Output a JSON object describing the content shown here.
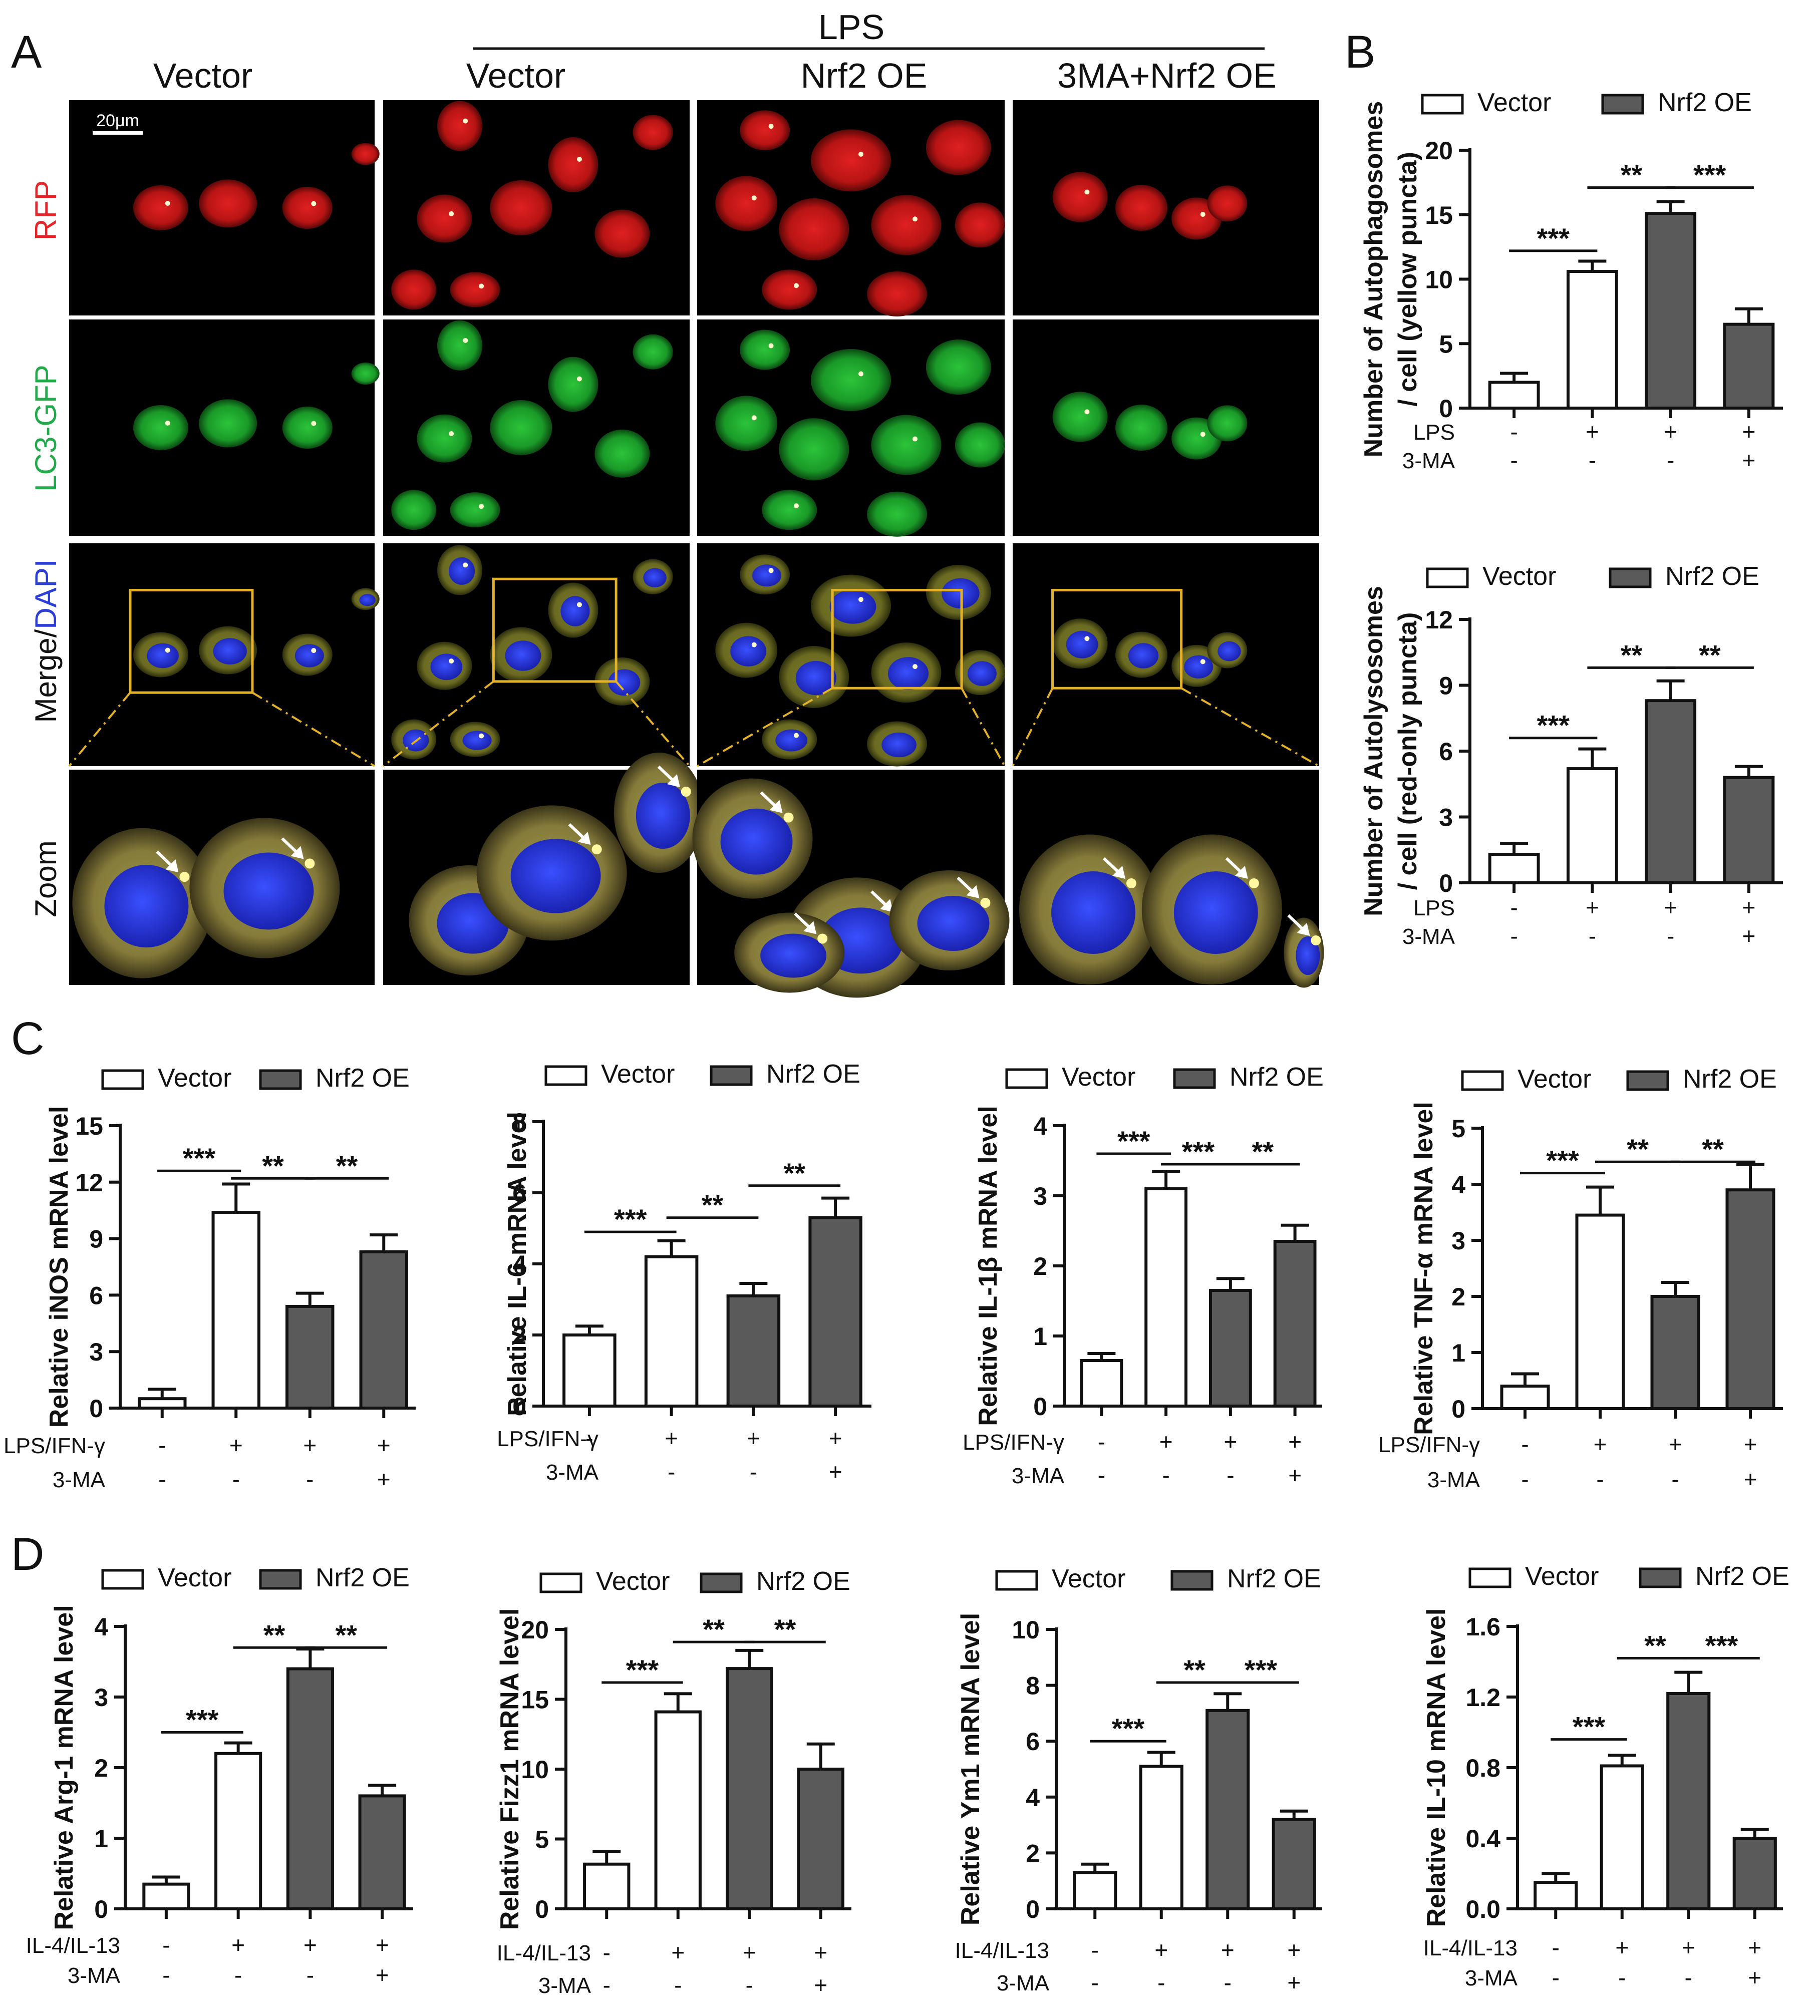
{
  "panel_a": {
    "letter": "A",
    "group_header": "LPS",
    "columns": [
      "Vector",
      "Vector",
      "Nrf2 OE",
      "3MA+Nrf2 OE"
    ],
    "rows": [
      {
        "label": "RFP",
        "color": "#e3262a"
      },
      {
        "label": "LC3-GFP",
        "color": "#22a94a"
      },
      {
        "label_parts": [
          "Merge/",
          "DAPI"
        ],
        "colors": [
          "#111111",
          "#2b3fd6"
        ]
      },
      {
        "label": "Zoom",
        "color": "#111111"
      }
    ],
    "scale_bar": "20μm"
  },
  "legend": {
    "vector": "Vector",
    "nrf2": "Nrf2 OE"
  },
  "colors": {
    "vector": "#ffffff",
    "nrf2": "#5a5a5a",
    "box": "#e3b22a"
  },
  "chart_data": [
    {
      "id": "b1",
      "panel": "B",
      "type": "bar",
      "ylabel_lines": [
        "Number of  Autophagosomes",
        "/ cell (yellow puncta)"
      ],
      "ylim": [
        0,
        20
      ],
      "yticks": [
        "0",
        "5",
        "10",
        "15",
        "20"
      ],
      "rows": [
        {
          "label": "LPS",
          "values": [
            "-",
            "+",
            "+",
            "+"
          ]
        },
        {
          "label": "3-MA",
          "values": [
            "-",
            "-",
            "-",
            "+"
          ]
        }
      ],
      "series": [
        {
          "values": [
            2.0,
            10.6,
            15.1,
            6.5
          ],
          "errors": [
            0.7,
            0.8,
            0.9,
            1.2
          ],
          "fills": [
            "vector",
            "vector",
            "nrf2",
            "nrf2"
          ]
        }
      ],
      "sig": [
        {
          "from": 0,
          "to": 1,
          "label": "***",
          "y": 12.2
        },
        {
          "from": 1,
          "to": 2,
          "label": "**",
          "y": 17.1
        },
        {
          "from": 2,
          "to": 3,
          "label": "***",
          "y": 17.1
        }
      ]
    },
    {
      "id": "b2",
      "panel": "",
      "type": "bar",
      "ylabel_lines": [
        "Number of  Autolysosomes",
        "/ cell (red-only puncta)"
      ],
      "ylim": [
        0,
        12
      ],
      "yticks": [
        "0",
        "3",
        "6",
        "9",
        "12"
      ],
      "rows": [
        {
          "label": "LPS",
          "values": [
            "-",
            "+",
            "+",
            "+"
          ]
        },
        {
          "label": "3-MA",
          "values": [
            "-",
            "-",
            "-",
            "+"
          ]
        }
      ],
      "series": [
        {
          "values": [
            1.3,
            5.2,
            8.3,
            4.8
          ],
          "errors": [
            0.5,
            0.9,
            0.9,
            0.5
          ],
          "fills": [
            "vector",
            "vector",
            "nrf2",
            "nrf2"
          ]
        }
      ],
      "sig": [
        {
          "from": 0,
          "to": 1,
          "label": "***",
          "y": 6.6
        },
        {
          "from": 1,
          "to": 2,
          "label": "**",
          "y": 9.8
        },
        {
          "from": 2,
          "to": 3,
          "label": "**",
          "y": 9.8
        }
      ]
    },
    {
      "id": "c1",
      "panel": "C",
      "type": "bar",
      "ylabel_lines": [
        "Relative iNOS mRNA level"
      ],
      "ylim": [
        0,
        15
      ],
      "yticks": [
        "0",
        "3",
        "6",
        "9",
        "12",
        "15"
      ],
      "rows": [
        {
          "label": "LPS/IFN-γ",
          "values": [
            "-",
            "+",
            "+",
            "+"
          ]
        },
        {
          "label": "3-MA",
          "values": [
            "-",
            "-",
            "-",
            "+"
          ]
        }
      ],
      "series": [
        {
          "values": [
            0.5,
            10.4,
            5.4,
            8.3
          ],
          "errors": [
            0.5,
            1.5,
            0.7,
            0.9
          ],
          "fills": [
            "vector",
            "vector",
            "nrf2",
            "nrf2"
          ]
        }
      ],
      "sig": [
        {
          "from": 0,
          "to": 1,
          "label": "***",
          "y": 12.6
        },
        {
          "from": 1,
          "to": 2,
          "label": "**",
          "y": 12.2
        },
        {
          "from": 2,
          "to": 3,
          "label": "**",
          "y": 12.2
        }
      ]
    },
    {
      "id": "c2",
      "panel": "",
      "type": "bar",
      "ylabel_lines": [
        "Relative IL-6 mRNA level"
      ],
      "ylim": [
        0,
        8
      ],
      "yticks": [
        "0",
        "2",
        "4",
        "6",
        "8"
      ],
      "rows": [
        {
          "label": "LPS/IFN-γ",
          "values": [
            "-",
            "+",
            "+",
            "+"
          ]
        },
        {
          "label": "3-MA",
          "values": [
            "-",
            "-",
            "-",
            "+"
          ]
        }
      ],
      "series": [
        {
          "values": [
            2.0,
            4.2,
            3.1,
            5.3
          ],
          "errors": [
            0.25,
            0.45,
            0.35,
            0.55
          ],
          "fills": [
            "vector",
            "vector",
            "nrf2",
            "nrf2"
          ]
        }
      ],
      "sig": [
        {
          "from": 0,
          "to": 1,
          "label": "***",
          "y": 4.9
        },
        {
          "from": 1,
          "to": 2,
          "label": "**",
          "y": 5.3
        },
        {
          "from": 2,
          "to": 3,
          "label": "**",
          "y": 6.2
        }
      ]
    },
    {
      "id": "c3",
      "panel": "",
      "type": "bar",
      "ylabel_lines": [
        "Relative IL-1β mRNA level"
      ],
      "ylim": [
        0,
        4
      ],
      "yticks": [
        "0",
        "1",
        "2",
        "3",
        "4"
      ],
      "rows": [
        {
          "label": "LPS/IFN-γ",
          "values": [
            "-",
            "+",
            "+",
            "+"
          ]
        },
        {
          "label": "3-MA",
          "values": [
            "-",
            "-",
            "-",
            "+"
          ]
        }
      ],
      "series": [
        {
          "values": [
            0.65,
            3.1,
            1.65,
            2.35
          ],
          "errors": [
            0.1,
            0.25,
            0.17,
            0.23
          ],
          "fills": [
            "vector",
            "vector",
            "nrf2",
            "nrf2"
          ]
        }
      ],
      "sig": [
        {
          "from": 0,
          "to": 1,
          "label": "***",
          "y": 3.6
        },
        {
          "from": 1,
          "to": 2,
          "label": "***",
          "y": 3.45
        },
        {
          "from": 2,
          "to": 3,
          "label": "**",
          "y": 3.45
        }
      ]
    },
    {
      "id": "c4",
      "panel": "",
      "type": "bar",
      "ylabel_lines": [
        "Relative TNF-α mRNA level"
      ],
      "ylim": [
        0,
        5
      ],
      "yticks": [
        "0",
        "1",
        "2",
        "3",
        "4",
        "5"
      ],
      "rows": [
        {
          "label": "LPS/IFN-γ",
          "values": [
            "-",
            "+",
            "+",
            "+"
          ]
        },
        {
          "label": "3-MA",
          "values": [
            "-",
            "-",
            "-",
            "+"
          ]
        }
      ],
      "series": [
        {
          "values": [
            0.4,
            3.45,
            2.0,
            3.9
          ],
          "errors": [
            0.22,
            0.5,
            0.25,
            0.45
          ],
          "fills": [
            "vector",
            "vector",
            "nrf2",
            "nrf2"
          ]
        }
      ],
      "sig": [
        {
          "from": 0,
          "to": 1,
          "label": "***",
          "y": 4.2
        },
        {
          "from": 1,
          "to": 2,
          "label": "**",
          "y": 4.4
        },
        {
          "from": 2,
          "to": 3,
          "label": "**",
          "y": 4.4
        }
      ]
    },
    {
      "id": "d1",
      "panel": "D",
      "type": "bar",
      "ylabel_lines": [
        "Relative Arg-1 mRNA level"
      ],
      "ylim": [
        0,
        4
      ],
      "yticks": [
        "0",
        "1",
        "2",
        "3",
        "4"
      ],
      "rows": [
        {
          "label": "IL-4/IL-13",
          "values": [
            "-",
            "+",
            "+",
            "+"
          ]
        },
        {
          "label": "3-MA",
          "values": [
            "-",
            "-",
            "-",
            "+"
          ]
        }
      ],
      "series": [
        {
          "values": [
            0.35,
            2.2,
            3.4,
            1.6
          ],
          "errors": [
            0.1,
            0.15,
            0.28,
            0.15
          ],
          "fills": [
            "vector",
            "vector",
            "nrf2",
            "nrf2"
          ]
        }
      ],
      "sig": [
        {
          "from": 0,
          "to": 1,
          "label": "***",
          "y": 2.5
        },
        {
          "from": 1,
          "to": 2,
          "label": "**",
          "y": 3.7
        },
        {
          "from": 2,
          "to": 3,
          "label": "**",
          "y": 3.7
        }
      ]
    },
    {
      "id": "d2",
      "panel": "",
      "type": "bar",
      "ylabel_lines": [
        "Relative Fizz1 mRNA level"
      ],
      "ylim": [
        0,
        20
      ],
      "yticks": [
        "0",
        "5",
        "10",
        "15",
        "20"
      ],
      "rows": [
        {
          "label": "IL-4/IL-13",
          "values": [
            "-",
            "+",
            "+",
            "+"
          ]
        },
        {
          "label": "3-MA",
          "values": [
            "-",
            "-",
            "-",
            "+"
          ]
        }
      ],
      "series": [
        {
          "values": [
            3.2,
            14.1,
            17.2,
            10.0
          ],
          "errors": [
            0.9,
            1.3,
            1.3,
            1.8
          ],
          "fills": [
            "vector",
            "vector",
            "nrf2",
            "nrf2"
          ]
        }
      ],
      "sig": [
        {
          "from": 0,
          "to": 1,
          "label": "***",
          "y": 16.2
        },
        {
          "from": 1,
          "to": 2,
          "label": "**",
          "y": 19.1
        },
        {
          "from": 2,
          "to": 3,
          "label": "**",
          "y": 19.1
        }
      ]
    },
    {
      "id": "d3",
      "panel": "",
      "type": "bar",
      "ylabel_lines": [
        "Relative Ym1 mRNA level"
      ],
      "ylim": [
        0,
        10
      ],
      "yticks": [
        "0",
        "2",
        "4",
        "6",
        "8",
        "10"
      ],
      "rows": [
        {
          "label": "IL-4/IL-13",
          "values": [
            "-",
            "+",
            "+",
            "+"
          ]
        },
        {
          "label": "3-MA",
          "values": [
            "-",
            "-",
            "-",
            "+"
          ]
        }
      ],
      "series": [
        {
          "values": [
            1.3,
            5.1,
            7.1,
            3.2
          ],
          "errors": [
            0.3,
            0.5,
            0.6,
            0.3
          ],
          "fills": [
            "vector",
            "vector",
            "nrf2",
            "nrf2"
          ]
        }
      ],
      "sig": [
        {
          "from": 0,
          "to": 1,
          "label": "***",
          "y": 6.0
        },
        {
          "from": 1,
          "to": 2,
          "label": "**",
          "y": 8.1
        },
        {
          "from": 2,
          "to": 3,
          "label": "***",
          "y": 8.1
        }
      ]
    },
    {
      "id": "d4",
      "panel": "",
      "type": "bar",
      "ylabel_lines": [
        "Relative IL-10 mRNA level"
      ],
      "ylim": [
        0,
        1.6
      ],
      "yticks": [
        "0.0",
        "0.4",
        "0.8",
        "1.2",
        "1.6"
      ],
      "rows": [
        {
          "label": "IL-4/IL-13",
          "values": [
            "-",
            "+",
            "+",
            "+"
          ]
        },
        {
          "label": "3-MA",
          "values": [
            "-",
            "-",
            "-",
            "+"
          ]
        }
      ],
      "series": [
        {
          "values": [
            0.15,
            0.81,
            1.22,
            0.4
          ],
          "errors": [
            0.05,
            0.06,
            0.12,
            0.05
          ],
          "fills": [
            "vector",
            "vector",
            "nrf2",
            "nrf2"
          ]
        }
      ],
      "sig": [
        {
          "from": 0,
          "to": 1,
          "label": "***",
          "y": 0.96
        },
        {
          "from": 1,
          "to": 2,
          "label": "**",
          "y": 1.42
        },
        {
          "from": 2,
          "to": 3,
          "label": "***",
          "y": 1.42
        }
      ]
    }
  ]
}
